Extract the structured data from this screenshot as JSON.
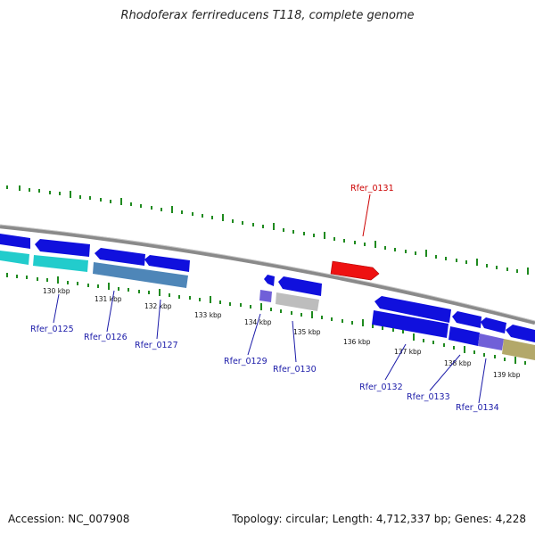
{
  "title": "Rhodoferax ferrireducens T118, complete genome",
  "footer": {
    "accession": "Accession: NC_007908",
    "summary": "Topology: circular; Length: 4,712,337 bp; Genes: 4,228"
  },
  "scale_labels": [
    "130 kbp",
    "131 kbp",
    "132 kbp",
    "133 kbp",
    "134 kbp",
    "135 kbp",
    "136 kbp",
    "137 kbp",
    "138 kbp",
    "139 kbp"
  ],
  "gene_labels": {
    "rfer_0125": "Rfer_0125",
    "rfer_0126": "Rfer_0126",
    "rfer_0127": "Rfer_0127",
    "rfer_0129": "Rfer_0129",
    "rfer_0130": "Rfer_0130",
    "rfer_0131": "Rfer_0131",
    "rfer_0132": "Rfer_0132",
    "rfer_0133": "Rfer_0133",
    "rfer_0134": "Rfer_0134"
  },
  "colors": {
    "backbone": "#8a8a8a",
    "ticks": "#1f8a1f",
    "gene_blue": "#1010dd",
    "gene_cyan": "#22cccc",
    "gene_steel": "#4e86b8",
    "gene_purple": "#7060d8",
    "gene_gray": "#bdbdbd",
    "gene_olive": "#b3a86a",
    "gene_red": "#ee1111",
    "label_blue": "#1a1aa8",
    "label_red": "#cc0000"
  }
}
